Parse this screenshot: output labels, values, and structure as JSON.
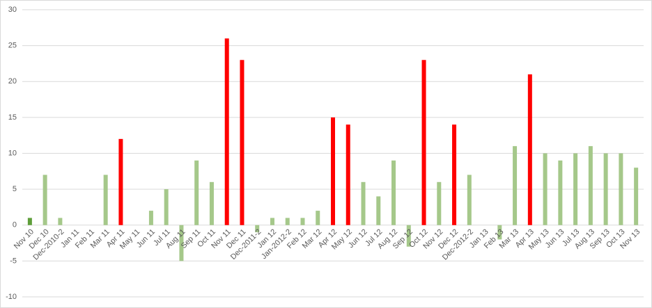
{
  "chart_data": {
    "type": "bar",
    "categories": [
      "Nov 10",
      "Dec 10",
      "Dec-2010-2",
      "Jan 11",
      "Feb 11",
      "Mar 11",
      "Apr 11",
      "May 11",
      "Jun 11",
      "Jul 11",
      "Aug 11",
      "Sep 11",
      "Oct 11",
      "Nov 11",
      "Dec 11",
      "Dec-2011-2",
      "Jan 12",
      "Jan-2012-2",
      "Feb 12",
      "Mar 12",
      "Apr 12",
      "May 12",
      "Jun 12",
      "Jul 12",
      "Aug 12",
      "Sep 12",
      "Oct 12",
      "Nov 12",
      "Dec 12",
      "Dec-2012-2",
      "Jan 13",
      "Feb 13",
      "Mar 13",
      "Apr 13",
      "May 13",
      "Jun 13",
      "Jul 13",
      "Aug 13",
      "Sep 13",
      "Oct 13",
      "Nov 13"
    ],
    "values": [
      1,
      7,
      1,
      0,
      0,
      7,
      12,
      0,
      2,
      5,
      -5,
      9,
      6,
      26,
      23,
      -1,
      1,
      1,
      1,
      2,
      15,
      14,
      6,
      4,
      9,
      -3,
      23,
      6,
      14,
      7,
      0,
      -2,
      11,
      21,
      10,
      9,
      10,
      11,
      10,
      10,
      8
    ],
    "colors": [
      "#5e9e3a",
      "#a5c88a",
      "#a5c88a",
      "#a5c88a",
      "#a5c88a",
      "#a5c88a",
      "#ff0000",
      "#a5c88a",
      "#a5c88a",
      "#a5c88a",
      "#a5c88a",
      "#a5c88a",
      "#a5c88a",
      "#ff0000",
      "#ff0000",
      "#a5c88a",
      "#a5c88a",
      "#a5c88a",
      "#a5c88a",
      "#a5c88a",
      "#ff0000",
      "#ff0000",
      "#a5c88a",
      "#a5c88a",
      "#a5c88a",
      "#a5c88a",
      "#ff0000",
      "#a5c88a",
      "#ff0000",
      "#a5c88a",
      "#a5c88a",
      "#a5c88a",
      "#a5c88a",
      "#ff0000",
      "#a5c88a",
      "#a5c88a",
      "#a5c88a",
      "#a5c88a",
      "#a5c88a",
      "#a5c88a",
      "#a5c88a"
    ],
    "ylim": [
      -10,
      30
    ],
    "yticks": [
      -10,
      -5,
      0,
      5,
      10,
      15,
      20,
      25,
      30
    ],
    "grid": true
  }
}
